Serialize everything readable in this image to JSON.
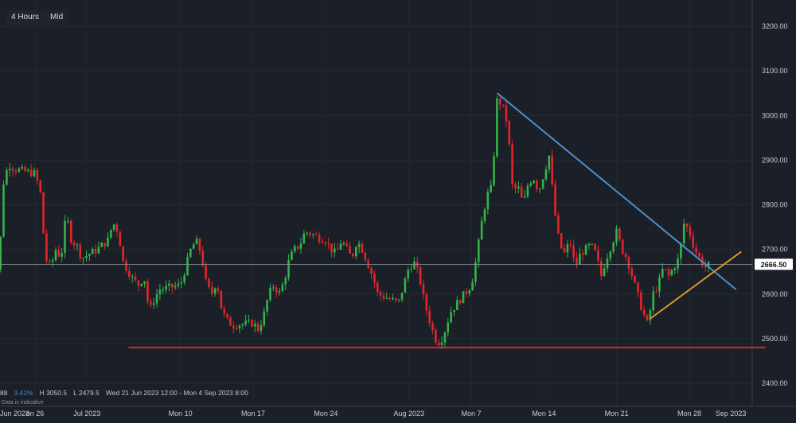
{
  "toolbar": {
    "timeframe": "4 Hours",
    "price_mode": "Mid"
  },
  "status_bar": {
    "value_partial": "88",
    "change_pct": "3.41%",
    "high": "H 3050.5",
    "low": "L 2479.5",
    "range": "Wed 21 Jun 2023 12:00 - Mon 4 Sep 2023 8:00",
    "disclaimer": "Data is indicative"
  },
  "colors": {
    "background": "#1b1f27",
    "up_candle": "#33b34a",
    "down_candle": "#e0262b",
    "downtrend_line": "#4a8fcf",
    "uptrend_line": "#d8952f",
    "support_line": "#d22b2b",
    "price_label_bg": "#ffffff"
  },
  "chart_data": {
    "type": "candlestick",
    "ylim": [
      2380,
      3260
    ],
    "yticks": [
      2400,
      2500,
      2600,
      2700,
      2800,
      2900,
      3000,
      3100,
      3200
    ],
    "ytick_labels": [
      "2400.00",
      "2500.00",
      "2600.00",
      "2700.00",
      "2800.00",
      "2900.00",
      "3000.00",
      "3100.00",
      "3200.00"
    ],
    "x_range": [
      "2023-06-21T12:00",
      "2023-09-04T08:00"
    ],
    "xtick_labels": [
      {
        "t": "2023-06-26",
        "label": "Mon 26"
      },
      {
        "t": "2023-07-01",
        "label": "Jul 2023"
      },
      {
        "t": "2023-07-10",
        "label": "Mon 10"
      },
      {
        "t": "2023-07-17",
        "label": "Mon 17"
      },
      {
        "t": "2023-07-24",
        "label": "Mon 24"
      },
      {
        "t": "2023-08-01",
        "label": "Aug 2023"
      },
      {
        "t": "2023-08-07",
        "label": "Mon 7"
      },
      {
        "t": "2023-08-14",
        "label": "Mon 14"
      },
      {
        "t": "2023-08-21",
        "label": "Mon 21"
      },
      {
        "t": "2023-08-28",
        "label": "Mon 28"
      },
      {
        "t": "2023-09-01",
        "label": "Sep 2023"
      }
    ],
    "first_xtick_prefix": "Jun 2023",
    "first_xtick_visible": "on 26",
    "current_price": 2666.5,
    "current_price_label": "2666.50",
    "high": 3050.5,
    "low": 2479.5,
    "close_path": [
      [
        "2023-06-21T12:00",
        2640
      ],
      [
        "2023-06-22T00:00",
        2680
      ],
      [
        "2023-06-22T12:00",
        2650
      ],
      [
        "2023-06-23T00:00",
        2860
      ],
      [
        "2023-06-23T12:00",
        2890
      ],
      [
        "2023-06-24T00:00",
        2880
      ],
      [
        "2023-06-26T00:00",
        2870
      ],
      [
        "2023-06-26T12:00",
        2830
      ],
      [
        "2023-06-27T00:00",
        2680
      ],
      [
        "2023-06-27T12:00",
        2660
      ],
      [
        "2023-06-28T00:00",
        2700
      ],
      [
        "2023-06-28T12:00",
        2680
      ],
      [
        "2023-06-29T00:00",
        2780
      ],
      [
        "2023-06-29T12:00",
        2720
      ],
      [
        "2023-06-30T00:00",
        2710
      ],
      [
        "2023-06-30T12:00",
        2680
      ],
      [
        "2023-07-02T00:00",
        2700
      ],
      [
        "2023-07-03T00:00",
        2720
      ],
      [
        "2023-07-03T12:00",
        2760
      ],
      [
        "2023-07-04T00:00",
        2740
      ],
      [
        "2023-07-04T12:00",
        2670
      ],
      [
        "2023-07-05T00:00",
        2650
      ],
      [
        "2023-07-05T12:00",
        2630
      ],
      [
        "2023-07-06T00:00",
        2620
      ],
      [
        "2023-07-06T12:00",
        2640
      ],
      [
        "2023-07-07T00:00",
        2560
      ],
      [
        "2023-07-07T12:00",
        2590
      ],
      [
        "2023-07-08T00:00",
        2610
      ],
      [
        "2023-07-10T00:00",
        2620
      ],
      [
        "2023-07-10T12:00",
        2660
      ],
      [
        "2023-07-11T00:00",
        2700
      ],
      [
        "2023-07-11T12:00",
        2720
      ],
      [
        "2023-07-12T00:00",
        2690
      ],
      [
        "2023-07-12T12:00",
        2620
      ],
      [
        "2023-07-13T00:00",
        2600
      ],
      [
        "2023-07-13T12:00",
        2630
      ],
      [
        "2023-07-14T00:00",
        2560
      ],
      [
        "2023-07-14T12:00",
        2540
      ],
      [
        "2023-07-15T00:00",
        2530
      ],
      [
        "2023-07-17T00:00",
        2535
      ],
      [
        "2023-07-17T12:00",
        2520
      ],
      [
        "2023-07-18T00:00",
        2550
      ],
      [
        "2023-07-18T12:00",
        2600
      ],
      [
        "2023-07-19T00:00",
        2620
      ],
      [
        "2023-07-19T12:00",
        2600
      ],
      [
        "2023-07-20T00:00",
        2630
      ],
      [
        "2023-07-20T12:00",
        2680
      ],
      [
        "2023-07-21T00:00",
        2700
      ],
      [
        "2023-07-21T12:00",
        2710
      ],
      [
        "2023-07-22T00:00",
        2740
      ],
      [
        "2023-07-24T00:00",
        2720
      ],
      [
        "2023-07-24T12:00",
        2700
      ],
      [
        "2023-07-25T00:00",
        2690
      ],
      [
        "2023-07-25T12:00",
        2720
      ],
      [
        "2023-07-26T00:00",
        2700
      ],
      [
        "2023-07-26T12:00",
        2680
      ],
      [
        "2023-07-27T00:00",
        2720
      ],
      [
        "2023-07-27T12:00",
        2700
      ],
      [
        "2023-07-28T00:00",
        2670
      ],
      [
        "2023-07-28T12:00",
        2640
      ],
      [
        "2023-07-29T00:00",
        2600
      ],
      [
        "2023-07-31T00:00",
        2580
      ],
      [
        "2023-07-31T12:00",
        2620
      ],
      [
        "2023-08-01T00:00",
        2660
      ],
      [
        "2023-08-01T12:00",
        2670
      ],
      [
        "2023-08-02T00:00",
        2640
      ],
      [
        "2023-08-02T12:00",
        2580
      ],
      [
        "2023-08-03T00:00",
        2540
      ],
      [
        "2023-08-03T12:00",
        2500
      ],
      [
        "2023-08-04T00:00",
        2490
      ],
      [
        "2023-08-04T12:00",
        2520
      ],
      [
        "2023-08-05T00:00",
        2560
      ],
      [
        "2023-08-06T00:00",
        2590
      ],
      [
        "2023-08-07T00:00",
        2620
      ],
      [
        "2023-08-07T12:00",
        2680
      ],
      [
        "2023-08-08T00:00",
        2760
      ],
      [
        "2023-08-08T12:00",
        2820
      ],
      [
        "2023-08-09T00:00",
        2840
      ],
      [
        "2023-08-09T12:00",
        3040
      ],
      [
        "2023-08-10T00:00",
        3020
      ],
      [
        "2023-08-10T12:00",
        2980
      ],
      [
        "2023-08-11T00:00",
        2830
      ],
      [
        "2023-08-11T12:00",
        2840
      ],
      [
        "2023-08-12T00:00",
        2800
      ],
      [
        "2023-08-12T12:00",
        2850
      ],
      [
        "2023-08-13T00:00",
        2860
      ],
      [
        "2023-08-13T12:00",
        2830
      ],
      [
        "2023-08-14T00:00",
        2870
      ],
      [
        "2023-08-14T12:00",
        2910
      ],
      [
        "2023-08-15T00:00",
        2790
      ],
      [
        "2023-08-15T12:00",
        2710
      ],
      [
        "2023-08-16T00:00",
        2690
      ],
      [
        "2023-08-16T12:00",
        2720
      ],
      [
        "2023-08-17T00:00",
        2660
      ],
      [
        "2023-08-17T12:00",
        2690
      ],
      [
        "2023-08-18T00:00",
        2700
      ],
      [
        "2023-08-18T12:00",
        2710
      ],
      [
        "2023-08-19T00:00",
        2690
      ],
      [
        "2023-08-19T12:00",
        2640
      ],
      [
        "2023-08-20T00:00",
        2680
      ],
      [
        "2023-08-20T12:00",
        2710
      ],
      [
        "2023-08-21T00:00",
        2740
      ],
      [
        "2023-08-21T12:00",
        2700
      ],
      [
        "2023-08-22T00:00",
        2680
      ],
      [
        "2023-08-22T12:00",
        2640
      ],
      [
        "2023-08-23T00:00",
        2600
      ],
      [
        "2023-08-23T12:00",
        2560
      ],
      [
        "2023-08-24T00:00",
        2530
      ],
      [
        "2023-08-24T12:00",
        2600
      ],
      [
        "2023-08-25T00:00",
        2620
      ],
      [
        "2023-08-25T12:00",
        2660
      ],
      [
        "2023-08-26T00:00",
        2640
      ],
      [
        "2023-08-27T00:00",
        2680
      ],
      [
        "2023-08-27T12:00",
        2760
      ],
      [
        "2023-08-28T00:00",
        2740
      ],
      [
        "2023-08-28T12:00",
        2700
      ],
      [
        "2023-08-29T00:00",
        2680
      ],
      [
        "2023-08-29T12:00",
        2660
      ],
      [
        "2023-08-30T00:00",
        2666.5
      ]
    ],
    "annotations": [
      {
        "type": "trendline",
        "name": "downtrend",
        "from": [
          "2023-08-09T12:00",
          3050
        ],
        "to": [
          "2023-09-01T12:00",
          2610
        ]
      },
      {
        "type": "trendline",
        "name": "uptrend",
        "from": [
          "2023-08-24T06:00",
          2545
        ],
        "to": [
          "2023-09-02T00:00",
          2695
        ]
      },
      {
        "type": "horizontal",
        "name": "support",
        "value": 2480,
        "from": "2023-07-05T00:00",
        "to": "2023-09-04T08:00"
      }
    ],
    "grid": true
  }
}
